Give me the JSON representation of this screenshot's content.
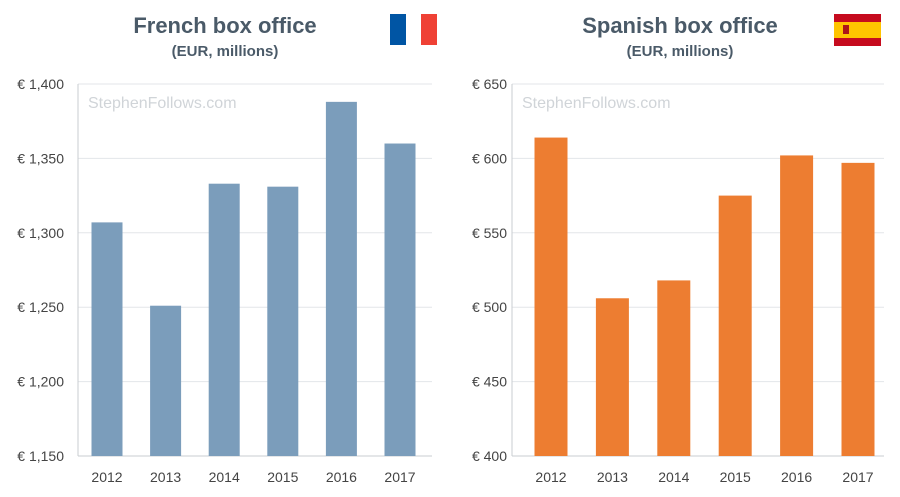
{
  "watermark": "StephenFollows.com",
  "chart_data": [
    {
      "type": "bar",
      "title": "French box office",
      "subtitle": "(EUR, millions)",
      "flag": "france-flag",
      "categories": [
        "2012",
        "2013",
        "2014",
        "2015",
        "2016",
        "2017"
      ],
      "values": [
        1307,
        1251,
        1333,
        1331,
        1388,
        1360
      ],
      "ylim": [
        1150,
        1400
      ],
      "yticks": [
        1150,
        1200,
        1250,
        1300,
        1350,
        1400
      ],
      "ytick_labels": [
        "€ 1,150",
        "€ 1,200",
        "€ 1,250",
        "€ 1,300",
        "€ 1,350",
        "€ 1,400"
      ],
      "color": "#7b9dbb",
      "grid": true,
      "xlabel": "",
      "ylabel": ""
    },
    {
      "type": "bar",
      "title": "Spanish box office",
      "subtitle": "(EUR, millions)",
      "flag": "spain-flag",
      "categories": [
        "2012",
        "2013",
        "2014",
        "2015",
        "2016",
        "2017"
      ],
      "values": [
        614,
        506,
        518,
        575,
        602,
        597
      ],
      "ylim": [
        400,
        650
      ],
      "yticks": [
        400,
        450,
        500,
        550,
        600,
        650
      ],
      "ytick_labels": [
        "€ 400",
        "€ 450",
        "€ 500",
        "€ 550",
        "€ 600",
        "€ 650"
      ],
      "color": "#ed7d31",
      "grid": true,
      "xlabel": "",
      "ylabel": ""
    }
  ],
  "colors": {
    "france_blue": "#0055a4",
    "france_red": "#ef4135",
    "spain_red": "#c60b1e",
    "spain_yellow": "#ffc400",
    "grid": "#e3e6e9",
    "axis": "#c9cdd1"
  }
}
